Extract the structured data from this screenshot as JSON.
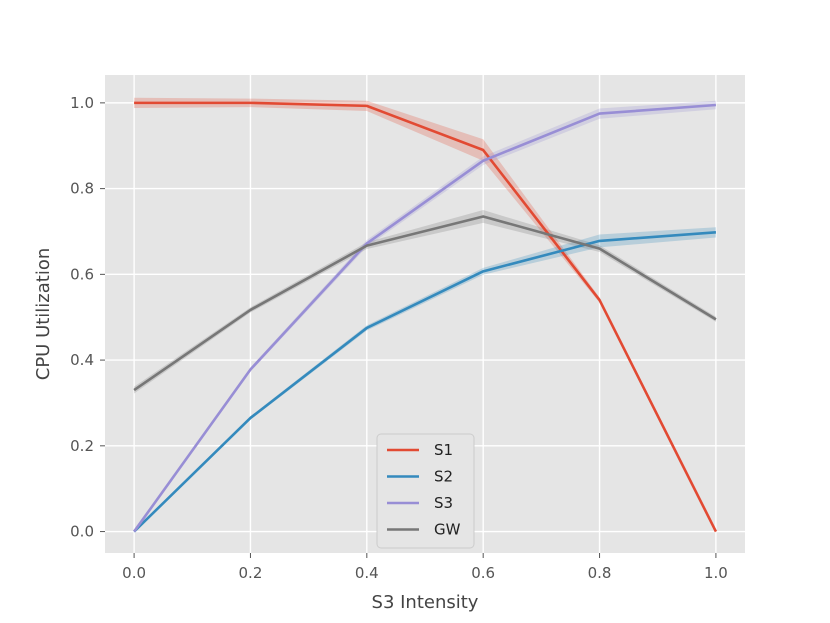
{
  "chart_data": {
    "type": "line",
    "title": "",
    "xlabel": "S3 Intensity",
    "ylabel": "CPU Utilization",
    "xlim": [
      -0.05,
      1.05
    ],
    "ylim": [
      -0.05,
      1.065
    ],
    "xticks": [
      "0.0",
      "0.2",
      "0.4",
      "0.6",
      "0.8",
      "1.0"
    ],
    "yticks": [
      "0.0",
      "0.2",
      "0.4",
      "0.6",
      "0.8",
      "1.0"
    ],
    "grid": true,
    "legend_position": "bottom-center",
    "x": [
      0.0,
      0.2,
      0.4,
      0.6,
      0.8,
      1.0
    ],
    "series": [
      {
        "name": "S1",
        "color": "#e24a33",
        "values": [
          1.0,
          1.0,
          0.993,
          0.89,
          0.54,
          0.0
        ],
        "ci": [
          0.012,
          0.01,
          0.012,
          0.025,
          0.006,
          0.003
        ]
      },
      {
        "name": "S2",
        "color": "#348abd",
        "values": [
          0.0,
          0.265,
          0.475,
          0.607,
          0.678,
          0.698
        ],
        "ci": [
          0.002,
          0.004,
          0.006,
          0.008,
          0.015,
          0.012
        ]
      },
      {
        "name": "S3",
        "color": "#988ed5",
        "values": [
          0.0,
          0.378,
          0.672,
          0.865,
          0.975,
          0.995
        ],
        "ci": [
          0.002,
          0.005,
          0.008,
          0.01,
          0.012,
          0.01
        ]
      },
      {
        "name": "GW",
        "color": "#777777",
        "values": [
          0.33,
          0.517,
          0.667,
          0.735,
          0.66,
          0.495
        ],
        "ci": [
          0.008,
          0.006,
          0.008,
          0.015,
          0.008,
          0.006
        ]
      }
    ]
  }
}
